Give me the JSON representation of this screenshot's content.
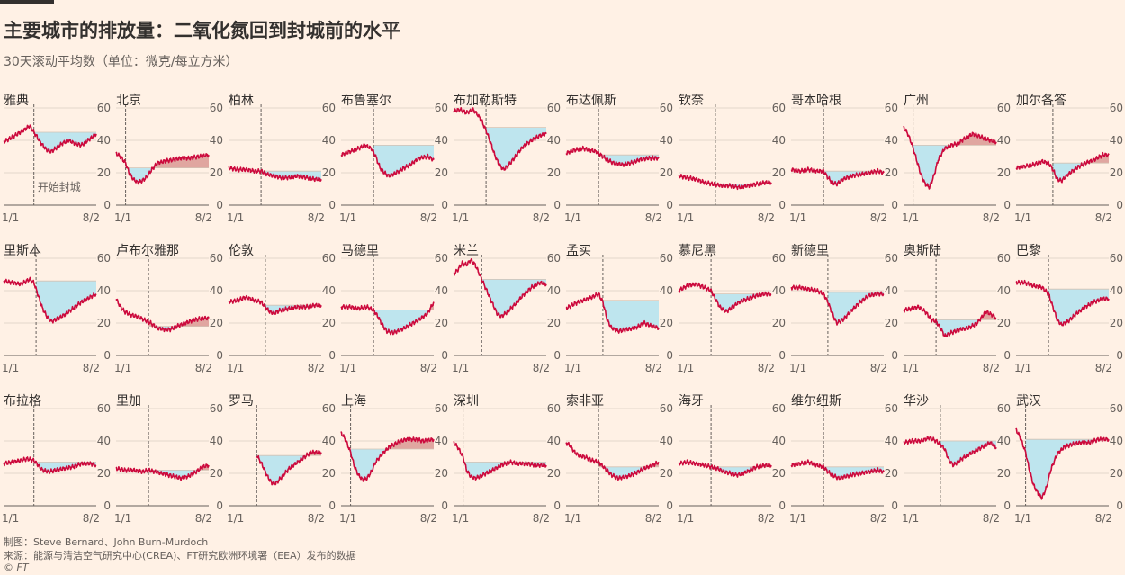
{
  "title": "主要城市的排放量：二氧化氮回到封城前的水平",
  "subtitle": "30天滚动平均数（单位：微克/每立方米）",
  "footer": {
    "credit": "制图：Steve Bernard、John Burn-Murdoch",
    "source": "来源：能源与清洁空气研究中心(CREA)、FT研究欧洲环境署（EEA）发布的数据",
    "logo": "© FT"
  },
  "colors": {
    "line": "#cc0a3d",
    "below": "#bee5ee",
    "above": "#e0a6a0",
    "lockdown": "#66605c",
    "grid": "#e3d7cc"
  },
  "chart_data": {
    "type": "line",
    "xlabel": "",
    "ylabel": "",
    "x_ticks": [
      "1/1",
      "8/2"
    ],
    "y_ticks": [
      0,
      20,
      40,
      60
    ],
    "ylim": [
      0,
      60
    ],
    "xlim_days": 214,
    "annotation": "开始封城",
    "grid": true,
    "series": [
      {
        "name": "雅典",
        "lockdown": 70,
        "ref": 45,
        "x": [
          0,
          20,
          45,
          60,
          70,
          80,
          90,
          100,
          110,
          120,
          135,
          150,
          165,
          180,
          195,
          214
        ],
        "y": [
          39,
          42,
          46,
          49,
          45,
          41,
          37,
          34,
          33,
          35,
          38,
          40,
          38,
          37,
          40,
          44
        ]
      },
      {
        "name": "北京",
        "lockdown": 22,
        "ref": 23,
        "x": [
          0,
          10,
          22,
          30,
          40,
          50,
          60,
          70,
          80,
          95,
          110,
          130,
          150,
          170,
          190,
          214
        ],
        "y": [
          32,
          30,
          26,
          20,
          16,
          14,
          15,
          17,
          21,
          26,
          27,
          28,
          29,
          29,
          30,
          31
        ]
      },
      {
        "name": "柏林",
        "lockdown": 75,
        "ref": 21,
        "x": [
          0,
          20,
          40,
          60,
          75,
          90,
          105,
          120,
          140,
          160,
          180,
          200,
          214
        ],
        "y": [
          23,
          22,
          22,
          21,
          21,
          19,
          18,
          17,
          17,
          18,
          17,
          16,
          16
        ]
      },
      {
        "name": "布鲁塞尔",
        "lockdown": 75,
        "ref": 37,
        "x": [
          0,
          20,
          40,
          55,
          70,
          80,
          90,
          100,
          110,
          120,
          140,
          160,
          180,
          200,
          214
        ],
        "y": [
          31,
          33,
          35,
          37,
          35,
          30,
          23,
          20,
          18,
          19,
          22,
          25,
          29,
          30,
          28
        ]
      },
      {
        "name": "布加勒斯特",
        "lockdown": 75,
        "ref": 48,
        "x": [
          0,
          15,
          30,
          45,
          55,
          65,
          75,
          85,
          95,
          105,
          115,
          125,
          140,
          160,
          180,
          200,
          214
        ],
        "y": [
          58,
          59,
          57,
          59,
          56,
          52,
          46,
          39,
          31,
          25,
          22,
          24,
          29,
          36,
          40,
          43,
          44
        ]
      },
      {
        "name": "布达佩斯",
        "lockdown": 75,
        "ref": 31,
        "x": [
          0,
          20,
          40,
          55,
          70,
          80,
          95,
          110,
          130,
          150,
          170,
          190,
          214
        ],
        "y": [
          32,
          34,
          35,
          34,
          33,
          31,
          28,
          26,
          25,
          26,
          28,
          29,
          29
        ]
      },
      {
        "name": "钦奈",
        "lockdown": 85,
        "ref": 13,
        "x": [
          0,
          20,
          40,
          60,
          80,
          100,
          120,
          140,
          160,
          180,
          200,
          214
        ],
        "y": [
          18,
          17,
          16,
          14,
          13,
          12,
          12,
          11,
          12,
          13,
          14,
          14
        ]
      },
      {
        "name": "哥本哈根",
        "lockdown": 75,
        "ref": 21,
        "x": [
          0,
          20,
          40,
          60,
          75,
          85,
          95,
          105,
          120,
          140,
          160,
          180,
          200,
          214
        ],
        "y": [
          22,
          21,
          22,
          21,
          21,
          17,
          14,
          13,
          16,
          18,
          19,
          20,
          21,
          20
        ]
      },
      {
        "name": "广州",
        "lockdown": 22,
        "ref": 37,
        "x": [
          0,
          10,
          20,
          30,
          40,
          50,
          60,
          70,
          80,
          95,
          110,
          125,
          140,
          160,
          180,
          200,
          214
        ],
        "y": [
          48,
          44,
          37,
          28,
          19,
          13,
          11,
          18,
          28,
          35,
          37,
          38,
          41,
          44,
          42,
          40,
          39
        ]
      },
      {
        "name": "加尔各答",
        "lockdown": 85,
        "ref": 26,
        "x": [
          0,
          20,
          40,
          60,
          75,
          85,
          95,
          105,
          120,
          140,
          160,
          180,
          200,
          214
        ],
        "y": [
          23,
          24,
          25,
          27,
          26,
          22,
          16,
          15,
          19,
          23,
          26,
          28,
          31,
          31
        ]
      },
      {
        "name": "里斯本",
        "lockdown": 75,
        "ref": 46,
        "x": [
          0,
          20,
          40,
          60,
          70,
          80,
          90,
          100,
          110,
          120,
          140,
          160,
          180,
          200,
          214
        ],
        "y": [
          46,
          45,
          44,
          47,
          45,
          37,
          29,
          24,
          21,
          22,
          25,
          29,
          33,
          36,
          38
        ]
      },
      {
        "name": "卢布尔雅那",
        "lockdown": 75,
        "ref": 18,
        "x": [
          0,
          10,
          20,
          35,
          50,
          65,
          80,
          95,
          110,
          125,
          140,
          160,
          180,
          200,
          214
        ],
        "y": [
          35,
          30,
          27,
          25,
          24,
          22,
          20,
          17,
          16,
          16,
          18,
          20,
          22,
          23,
          23
        ]
      },
      {
        "name": "伦敦",
        "lockdown": 85,
        "ref": 31,
        "x": [
          0,
          20,
          40,
          60,
          75,
          85,
          95,
          105,
          120,
          140,
          160,
          180,
          200,
          214
        ],
        "y": [
          33,
          34,
          36,
          34,
          33,
          30,
          27,
          26,
          28,
          29,
          30,
          30,
          31,
          31
        ]
      },
      {
        "name": "马德里",
        "lockdown": 75,
        "ref": 28,
        "x": [
          0,
          20,
          40,
          60,
          75,
          85,
          95,
          105,
          120,
          140,
          160,
          180,
          200,
          214
        ],
        "y": [
          30,
          30,
          29,
          30,
          28,
          24,
          19,
          15,
          14,
          16,
          19,
          22,
          26,
          33
        ]
      },
      {
        "name": "米兰",
        "lockdown": 65,
        "ref": 47,
        "x": [
          0,
          10,
          20,
          30,
          40,
          50,
          60,
          70,
          80,
          90,
          100,
          110,
          120,
          140,
          160,
          180,
          200,
          214
        ],
        "y": [
          50,
          53,
          57,
          56,
          59,
          56,
          50,
          44,
          38,
          32,
          26,
          24,
          26,
          31,
          37,
          42,
          45,
          44
        ]
      },
      {
        "name": "孟买",
        "lockdown": 85,
        "ref": 34,
        "x": [
          0,
          20,
          40,
          60,
          75,
          85,
          95,
          105,
          120,
          140,
          160,
          180,
          200,
          214
        ],
        "y": [
          29,
          32,
          34,
          36,
          38,
          33,
          22,
          17,
          15,
          16,
          17,
          20,
          18,
          17
        ]
      },
      {
        "name": "慕尼黑",
        "lockdown": 75,
        "ref": 38,
        "x": [
          0,
          20,
          40,
          60,
          75,
          85,
          95,
          110,
          125,
          140,
          160,
          180,
          200,
          214
        ],
        "y": [
          40,
          43,
          44,
          42,
          40,
          35,
          30,
          27,
          30,
          33,
          35,
          37,
          38,
          38
        ]
      },
      {
        "name": "新德里",
        "lockdown": 85,
        "ref": 39,
        "x": [
          0,
          20,
          40,
          60,
          75,
          85,
          95,
          105,
          120,
          140,
          160,
          180,
          200,
          214
        ],
        "y": [
          42,
          42,
          41,
          40,
          38,
          33,
          26,
          20,
          22,
          28,
          33,
          37,
          38,
          38
        ]
      },
      {
        "name": "奥斯陆",
        "lockdown": 75,
        "ref": 22,
        "x": [
          0,
          20,
          35,
          50,
          65,
          75,
          85,
          95,
          110,
          130,
          150,
          170,
          190,
          205,
          214
        ],
        "y": [
          28,
          29,
          30,
          27,
          22,
          21,
          17,
          12,
          14,
          16,
          17,
          20,
          27,
          25,
          23
        ]
      },
      {
        "name": "巴黎",
        "lockdown": 75,
        "ref": 41,
        "x": [
          0,
          20,
          40,
          60,
          75,
          85,
          95,
          105,
          120,
          140,
          160,
          180,
          200,
          214
        ],
        "y": [
          45,
          45,
          43,
          42,
          38,
          30,
          22,
          19,
          21,
          26,
          30,
          33,
          35,
          35
        ]
      },
      {
        "name": "布拉格",
        "lockdown": 70,
        "ref": 27,
        "x": [
          0,
          20,
          40,
          55,
          70,
          80,
          90,
          105,
          120,
          140,
          160,
          180,
          200,
          214
        ],
        "y": [
          26,
          27,
          28,
          29,
          28,
          25,
          22,
          21,
          22,
          23,
          24,
          26,
          26,
          25
        ]
      },
      {
        "name": "里加",
        "lockdown": 75,
        "ref": 22,
        "x": [
          0,
          20,
          40,
          60,
          75,
          90,
          105,
          120,
          135,
          150,
          165,
          180,
          200,
          214
        ],
        "y": [
          23,
          22,
          22,
          21,
          22,
          21,
          20,
          19,
          18,
          17,
          18,
          20,
          24,
          25
        ]
      },
      {
        "name": "罗马",
        "lockdown": 65,
        "ref": 31,
        "x": [
          65,
          70,
          80,
          90,
          100,
          110,
          120,
          130,
          140,
          150,
          160,
          175,
          190,
          205,
          214
        ],
        "y": [
          31,
          29,
          24,
          18,
          14,
          14,
          17,
          20,
          23,
          25,
          27,
          30,
          33,
          33,
          33
        ]
      },
      {
        "name": "上海",
        "lockdown": 22,
        "ref": 35,
        "x": [
          0,
          10,
          22,
          30,
          40,
          50,
          60,
          70,
          80,
          95,
          110,
          130,
          150,
          170,
          190,
          214
        ],
        "y": [
          45,
          41,
          33,
          25,
          19,
          16,
          17,
          21,
          27,
          32,
          36,
          39,
          41,
          41,
          40,
          41
        ]
      },
      {
        "name": "深圳",
        "lockdown": 22,
        "ref": 27,
        "x": [
          0,
          10,
          22,
          30,
          40,
          50,
          60,
          75,
          90,
          110,
          130,
          150,
          170,
          190,
          214
        ],
        "y": [
          39,
          36,
          30,
          22,
          18,
          17,
          18,
          20,
          22,
          25,
          27,
          26,
          26,
          25,
          25
        ]
      },
      {
        "name": "索非亚",
        "lockdown": 75,
        "ref": 24,
        "x": [
          0,
          10,
          20,
          30,
          45,
          60,
          75,
          90,
          105,
          120,
          140,
          160,
          180,
          200,
          214
        ],
        "y": [
          39,
          37,
          33,
          31,
          30,
          28,
          27,
          23,
          19,
          17,
          18,
          20,
          23,
          25,
          27
        ]
      },
      {
        "name": "海牙",
        "lockdown": 75,
        "ref": 24,
        "x": [
          0,
          20,
          40,
          60,
          75,
          90,
          105,
          120,
          135,
          150,
          165,
          180,
          200,
          214
        ],
        "y": [
          26,
          27,
          26,
          25,
          24,
          23,
          21,
          20,
          19,
          20,
          22,
          24,
          25,
          25
        ]
      },
      {
        "name": "维尔纽斯",
        "lockdown": 75,
        "ref": 24,
        "x": [
          0,
          20,
          40,
          60,
          75,
          85,
          95,
          110,
          125,
          140,
          160,
          180,
          200,
          214
        ],
        "y": [
          25,
          26,
          27,
          25,
          24,
          21,
          19,
          17,
          18,
          19,
          20,
          21,
          22,
          21
        ]
      },
      {
        "name": "华沙",
        "lockdown": 85,
        "ref": 40,
        "x": [
          0,
          20,
          40,
          60,
          75,
          85,
          95,
          105,
          115,
          125,
          140,
          160,
          180,
          200,
          214
        ],
        "y": [
          39,
          40,
          40,
          42,
          40,
          38,
          35,
          28,
          25,
          27,
          30,
          33,
          36,
          39,
          36
        ]
      },
      {
        "name": "武汉",
        "lockdown": 22,
        "ref": 41,
        "x": [
          0,
          10,
          22,
          30,
          40,
          50,
          55,
          60,
          70,
          80,
          95,
          110,
          130,
          150,
          170,
          190,
          214
        ],
        "y": [
          47,
          42,
          33,
          23,
          13,
          8,
          6,
          5,
          11,
          22,
          32,
          36,
          38,
          39,
          39,
          41,
          41
        ]
      }
    ]
  }
}
